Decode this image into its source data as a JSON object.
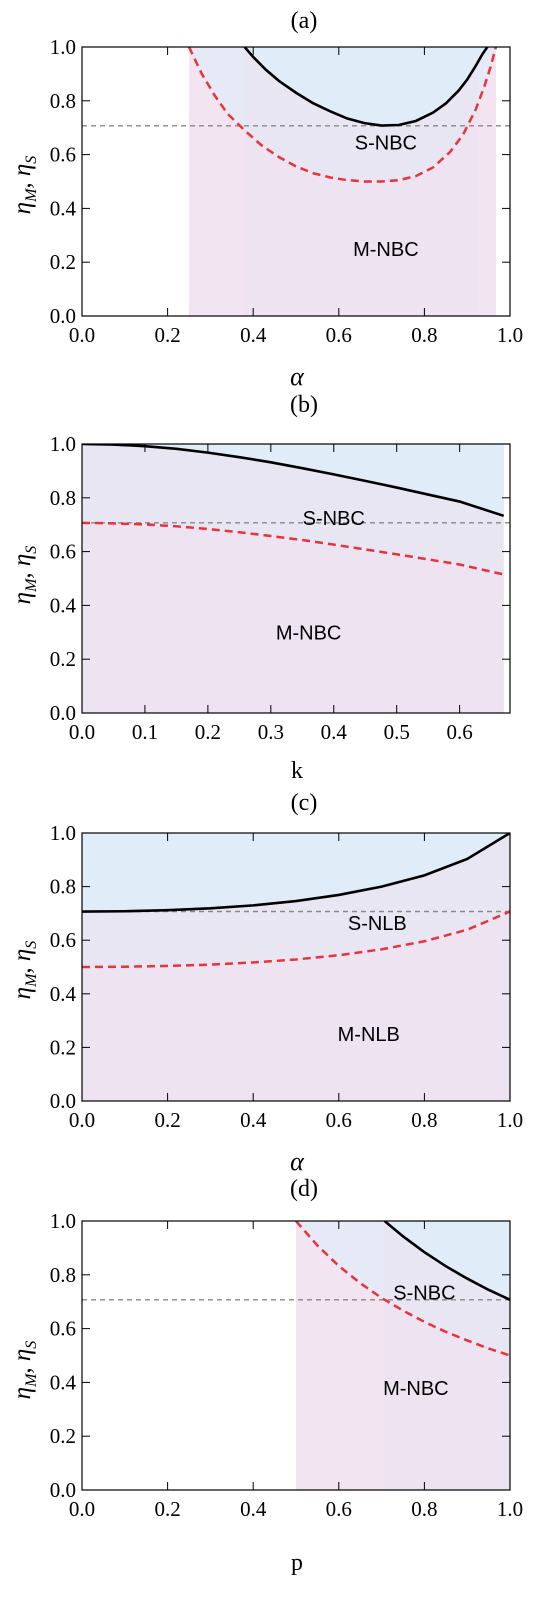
{
  "figure": {
    "ylabel_main": "η",
    "ylabel_sub1": "M",
    "ylabel_sep": ", η",
    "ylabel_sub2": "S"
  },
  "colors": {
    "blue_fill": "#e1ecf9",
    "pink_fill": "#f2e4f0",
    "overlap_fill": "#ebe3f1",
    "solid_curve": "#000000",
    "dashed_curve": "#e8333a",
    "threshold_line": "#888888"
  },
  "chart_data": [
    {
      "panel_label": "(a)",
      "type": "line",
      "xlabel": "α",
      "xlim": [
        0,
        1.0
      ],
      "ylim": [
        0,
        1.0
      ],
      "xticks": [
        "0.0",
        "0.2",
        "0.4",
        "0.6",
        "0.8",
        "1.0"
      ],
      "xtick_values": [
        0,
        0.2,
        0.4,
        0.6,
        0.8,
        1.0
      ],
      "yticks": [
        "0.0",
        "0.2",
        "0.4",
        "0.6",
        "0.8",
        "1.0"
      ],
      "ytick_values": [
        0,
        0.2,
        0.4,
        0.6,
        0.8,
        1.0
      ],
      "threshold_y": 0.7071,
      "region_labels": [
        {
          "text": "S-NBC",
          "x": 0.71,
          "y": 0.645
        },
        {
          "text": "M-NBC",
          "x": 0.71,
          "y": 0.25
        }
      ],
      "pink_range": [
        0.25,
        0.967
      ],
      "blue_range": [
        0.25,
        0.967
      ],
      "overlap_range": [
        0.38,
        0.925
      ],
      "solid_curve": {
        "x": [
          0.38,
          0.4,
          0.43,
          0.46,
          0.5,
          0.54,
          0.58,
          0.62,
          0.66,
          0.7,
          0.74,
          0.78,
          0.82,
          0.85,
          0.88,
          0.9,
          0.92,
          0.935,
          0.947
        ],
        "y": [
          1.0,
          0.963,
          0.915,
          0.874,
          0.83,
          0.791,
          0.761,
          0.734,
          0.717,
          0.708,
          0.71,
          0.725,
          0.756,
          0.79,
          0.838,
          0.879,
          0.93,
          0.972,
          1.0
        ]
      },
      "dashed_curve": {
        "x": [
          0.25,
          0.28,
          0.31,
          0.34,
          0.38,
          0.42,
          0.46,
          0.5,
          0.54,
          0.58,
          0.62,
          0.66,
          0.7,
          0.74,
          0.78,
          0.82,
          0.86,
          0.89,
          0.92,
          0.94,
          0.955,
          0.967
        ],
        "y": [
          1.0,
          0.9,
          0.82,
          0.752,
          0.69,
          0.634,
          0.591,
          0.556,
          0.531,
          0.515,
          0.505,
          0.5,
          0.5,
          0.505,
          0.52,
          0.552,
          0.61,
          0.673,
          0.768,
          0.853,
          0.928,
          1.0
        ]
      }
    },
    {
      "panel_label": "(b)",
      "type": "line",
      "xlabel": "k",
      "xlim": [
        0,
        0.68
      ],
      "ylim": [
        0,
        1.0
      ],
      "xticks": [
        "0.0",
        "0.1",
        "0.2",
        "0.3",
        "0.4",
        "0.5",
        "0.6"
      ],
      "xtick_values": [
        0,
        0.1,
        0.2,
        0.3,
        0.4,
        0.5,
        0.6
      ],
      "yticks": [
        "0.0",
        "0.2",
        "0.4",
        "0.6",
        "0.8",
        "1.0"
      ],
      "ytick_values": [
        0,
        0.2,
        0.4,
        0.6,
        0.8,
        1.0
      ],
      "threshold_y": 0.7071,
      "region_labels": [
        {
          "text": "S-NBC",
          "x": 0.4,
          "y": 0.725
        },
        {
          "text": "M-NBC",
          "x": 0.36,
          "y": 0.3
        }
      ],
      "pink_range": [
        0,
        0.67
      ],
      "blue_range": [
        0,
        0.67
      ],
      "overlap_range": [
        0,
        0.67
      ],
      "solid_curve": {
        "x": [
          0,
          0.05,
          0.1,
          0.15,
          0.2,
          0.25,
          0.3,
          0.35,
          0.4,
          0.45,
          0.5,
          0.55,
          0.6,
          0.67
        ],
        "y": [
          1.0,
          0.998,
          0.992,
          0.982,
          0.968,
          0.951,
          0.932,
          0.91,
          0.887,
          0.863,
          0.838,
          0.812,
          0.786,
          0.733
        ]
      },
      "dashed_curve": {
        "x": [
          0,
          0.05,
          0.1,
          0.15,
          0.2,
          0.25,
          0.3,
          0.35,
          0.4,
          0.45,
          0.5,
          0.55,
          0.6,
          0.67
        ],
        "y": [
          0.707,
          0.705,
          0.701,
          0.694,
          0.684,
          0.672,
          0.658,
          0.643,
          0.626,
          0.608,
          0.59,
          0.571,
          0.552,
          0.515
        ]
      }
    },
    {
      "panel_label": "(c)",
      "type": "line",
      "xlabel": "α",
      "xlim": [
        0,
        1.0
      ],
      "ylim": [
        0,
        1.0
      ],
      "xticks": [
        "0.0",
        "0.2",
        "0.4",
        "0.6",
        "0.8",
        "1.0"
      ],
      "xtick_values": [
        0,
        0.2,
        0.4,
        0.6,
        0.8,
        1.0
      ],
      "yticks": [
        "0.0",
        "0.2",
        "0.4",
        "0.6",
        "0.8",
        "1.0"
      ],
      "ytick_values": [
        0,
        0.2,
        0.4,
        0.6,
        0.8,
        1.0
      ],
      "threshold_y": 0.7071,
      "region_labels": [
        {
          "text": "S-NLB",
          "x": 0.69,
          "y": 0.665
        },
        {
          "text": "M-NLB",
          "x": 0.67,
          "y": 0.25
        }
      ],
      "pink_range": [
        0,
        1.0
      ],
      "blue_range": [
        0,
        1.0
      ],
      "overlap_range": [
        0,
        1.0
      ],
      "solid_curve": {
        "x": [
          0,
          0.1,
          0.2,
          0.3,
          0.4,
          0.5,
          0.6,
          0.7,
          0.8,
          0.9,
          1.0
        ],
        "y": [
          0.707,
          0.708,
          0.712,
          0.719,
          0.73,
          0.746,
          0.769,
          0.8,
          0.842,
          0.903,
          1.0
        ]
      },
      "dashed_curve": {
        "x": [
          0,
          0.1,
          0.2,
          0.3,
          0.4,
          0.5,
          0.6,
          0.7,
          0.8,
          0.9,
          1.0
        ],
        "y": [
          0.5,
          0.501,
          0.504,
          0.509,
          0.517,
          0.528,
          0.544,
          0.566,
          0.596,
          0.639,
          0.707
        ]
      }
    },
    {
      "panel_label": "(d)",
      "type": "line",
      "xlabel": "p",
      "xlim": [
        0,
        1.0
      ],
      "ylim": [
        0,
        1.0
      ],
      "xticks": [
        "0.0",
        "0.2",
        "0.4",
        "0.6",
        "0.8",
        "1.0"
      ],
      "xtick_values": [
        0,
        0.2,
        0.4,
        0.6,
        0.8,
        1.0
      ],
      "yticks": [
        "0.0",
        "0.2",
        "0.4",
        "0.6",
        "0.8",
        "1.0"
      ],
      "ytick_values": [
        0,
        0.2,
        0.4,
        0.6,
        0.8,
        1.0
      ],
      "threshold_y": 0.7071,
      "region_labels": [
        {
          "text": "S-NBC",
          "x": 0.8,
          "y": 0.735
        },
        {
          "text": "M-NBC",
          "x": 0.78,
          "y": 0.38
        }
      ],
      "pink_range": [
        0.5,
        1.0
      ],
      "blue_range": [
        0.5,
        1.0
      ],
      "overlap_range": [
        0.707,
        1.0
      ],
      "solid_curve": {
        "x": [
          0.707,
          0.75,
          0.8,
          0.85,
          0.9,
          0.95,
          1.0
        ],
        "y": [
          1.0,
          0.943,
          0.884,
          0.832,
          0.786,
          0.744,
          0.707
        ]
      },
      "dashed_curve": {
        "x": [
          0.5,
          0.55,
          0.6,
          0.65,
          0.7,
          0.75,
          0.8,
          0.85,
          0.9,
          0.95,
          1.0
        ],
        "y": [
          1.0,
          0.909,
          0.833,
          0.769,
          0.714,
          0.667,
          0.625,
          0.588,
          0.556,
          0.526,
          0.5
        ]
      }
    }
  ]
}
